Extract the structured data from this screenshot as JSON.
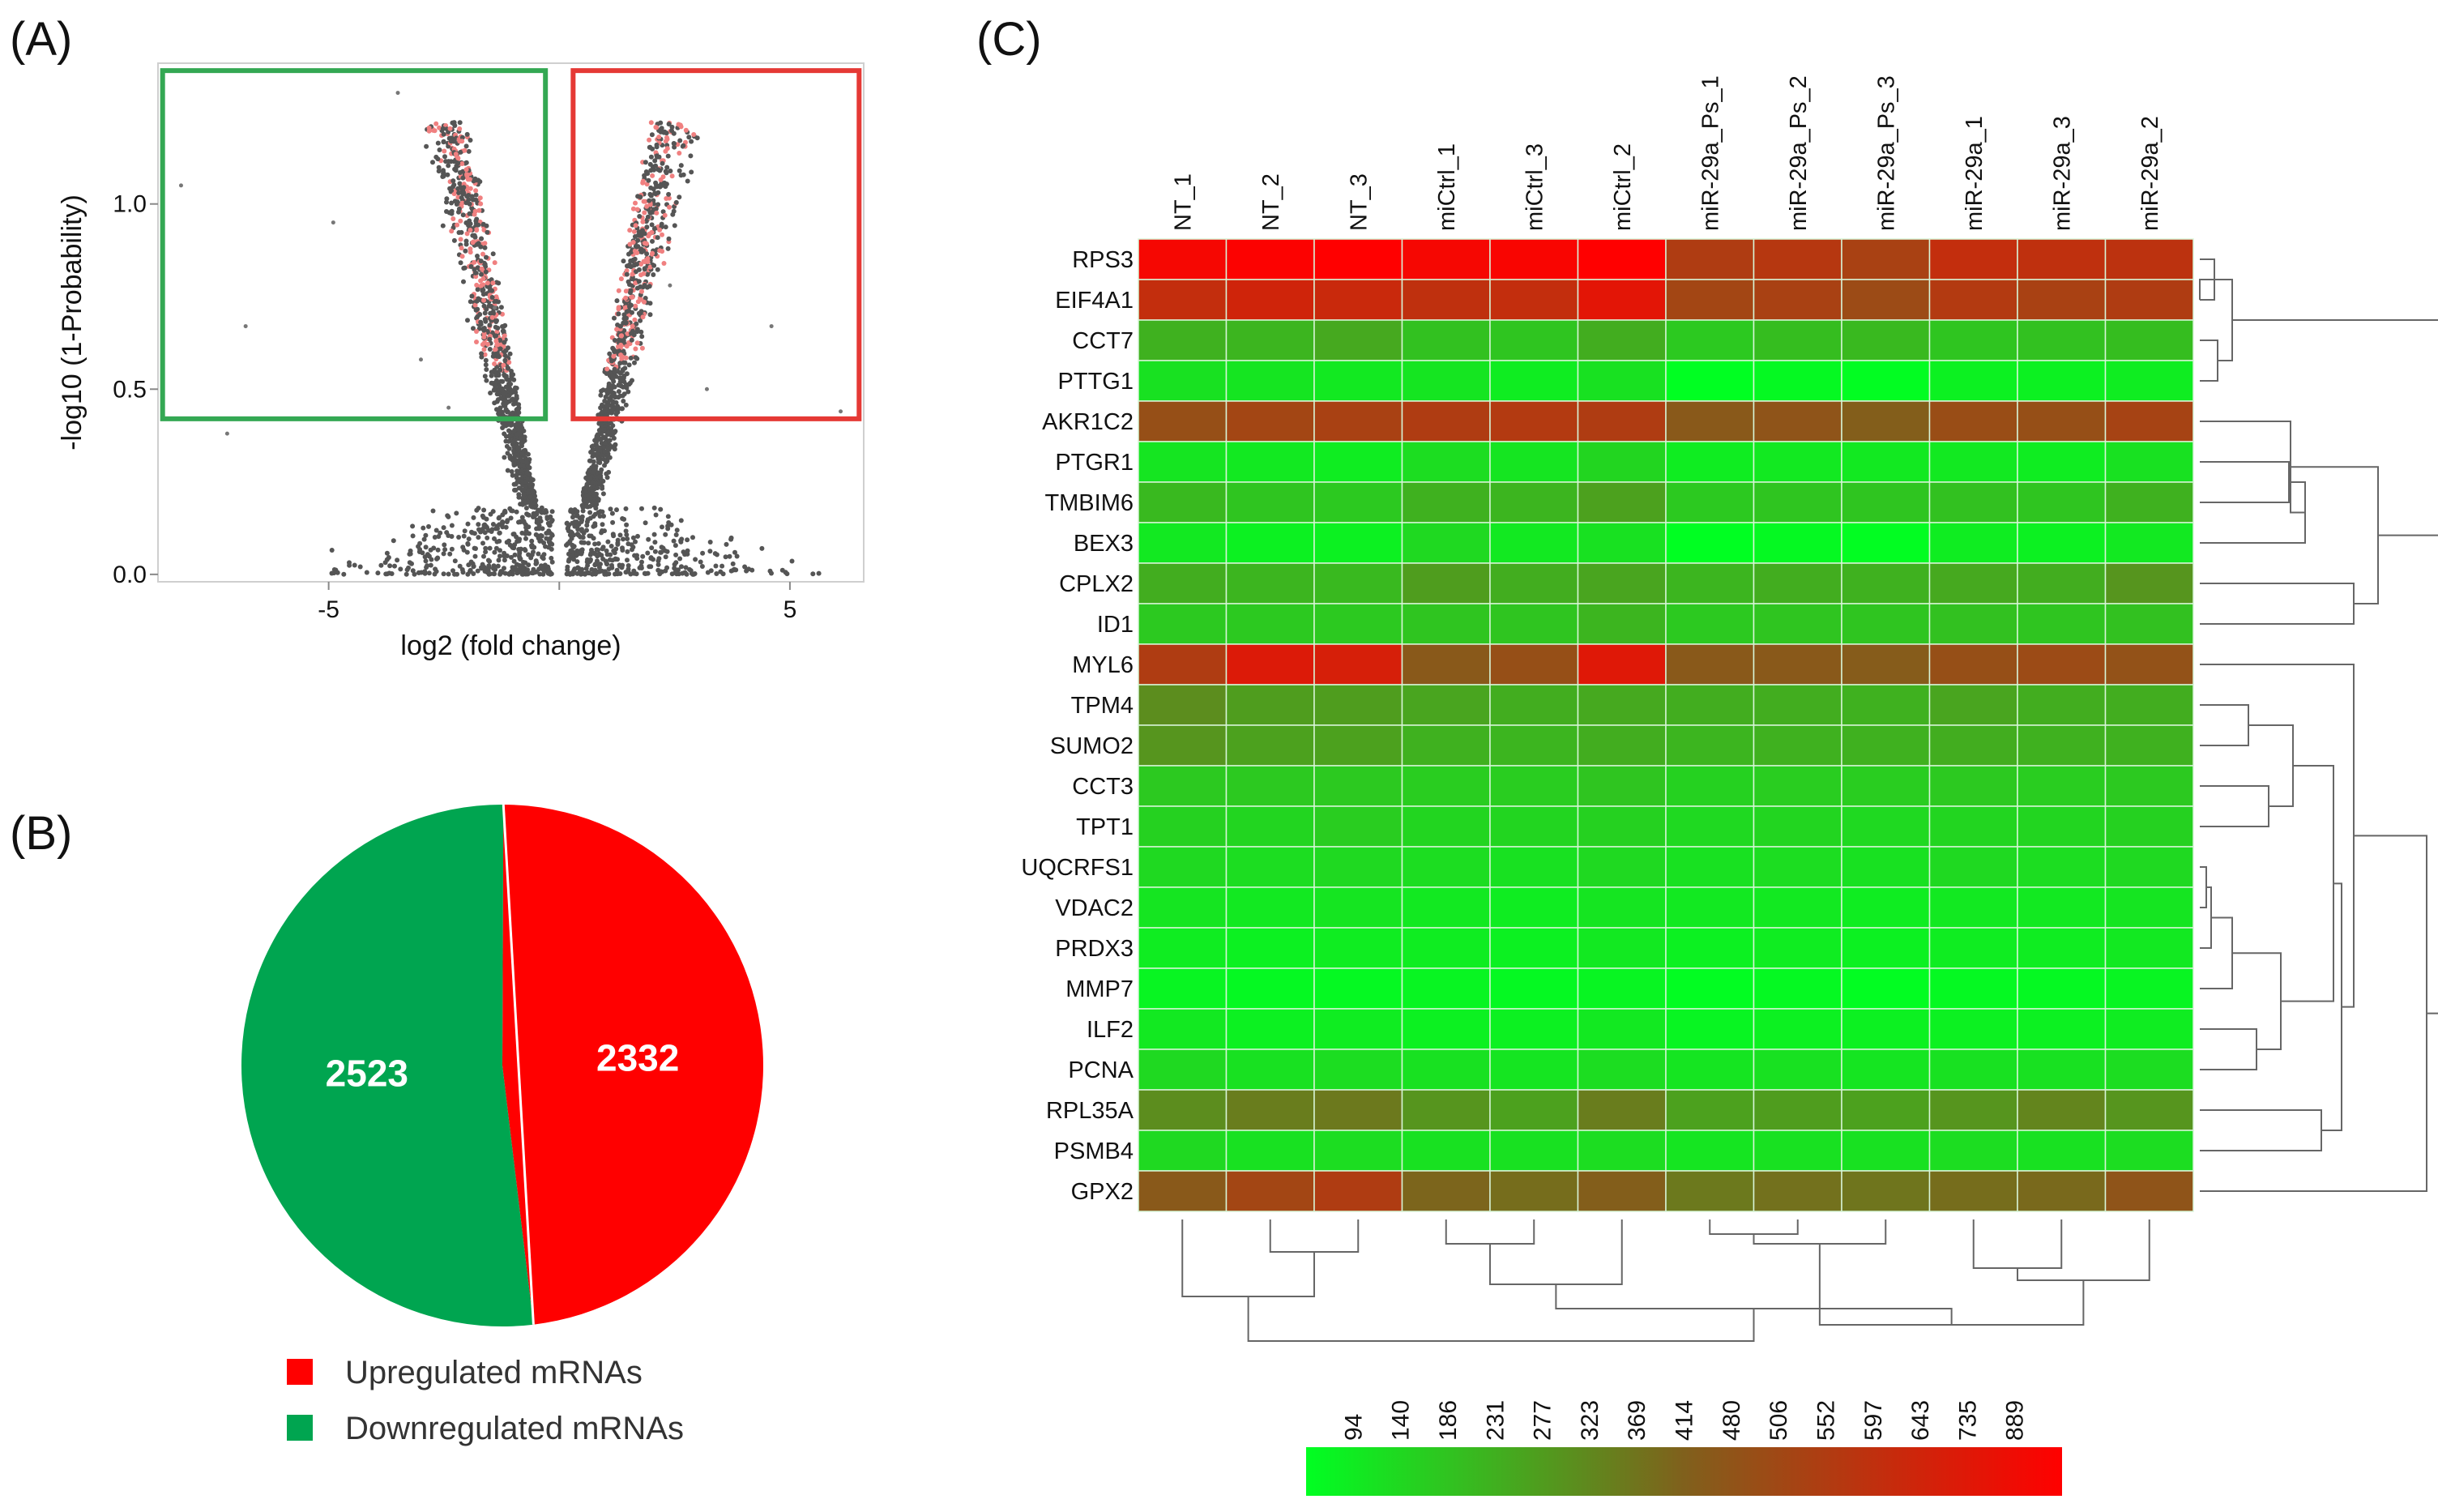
{
  "panels": {
    "a_label": "(A)",
    "b_label": "(B)",
    "c_label": "(C)"
  },
  "colors": {
    "up": "#ff0000",
    "down": "#00a550",
    "box_down": "#34a853",
    "box_up": "#e53935",
    "points": "#555555",
    "sig_points": "#f08080",
    "low": "#00ff22",
    "mid": "#80601c",
    "high": "#ff0000",
    "dendro": "#666666"
  },
  "chart_data": [
    {
      "type": "scatter",
      "name": "volcano",
      "xlabel": "log2 (fold change)",
      "ylabel": "-log10 (1-Probability)",
      "xlim": [
        -8.7,
        6.6
      ],
      "ylim": [
        -0.02,
        1.38
      ],
      "xticks": [
        -5,
        0,
        5
      ],
      "xtick_labels": [
        "-5",
        "",
        "5"
      ],
      "yticks": [
        0.0,
        0.5,
        1.0
      ],
      "ytick_labels": [
        "0.0",
        "0.5",
        "1.0"
      ],
      "down_box": {
        "x": [
          -8.6,
          -0.3
        ],
        "y": [
          0.42,
          1.36
        ]
      },
      "up_box": {
        "x": [
          0.3,
          6.5
        ],
        "y": [
          0.42,
          1.36
        ]
      },
      "outliers": [
        [
          -8.2,
          1.05
        ],
        [
          -6.8,
          0.67
        ],
        [
          -3.0,
          0.58
        ],
        [
          -2.4,
          0.45
        ],
        [
          -4.9,
          0.95
        ],
        [
          -1.4,
          0.72
        ],
        [
          4.6,
          0.67
        ],
        [
          6.1,
          0.44
        ],
        [
          3.2,
          0.5
        ],
        [
          2.4,
          0.78
        ],
        [
          -7.2,
          0.38
        ],
        [
          -3.5,
          1.3
        ]
      ]
    },
    {
      "type": "pie",
      "name": "regulation",
      "labels": [
        "Upregulated mRNAs",
        "Downregulated mRNAs"
      ],
      "values": [
        2332,
        2523
      ],
      "value_labels": [
        "2332",
        "2523"
      ]
    },
    {
      "type": "heatmap",
      "name": "expression",
      "columns": [
        "NT_1",
        "NT_2",
        "NT_3",
        "miCtrl_1",
        "miCtrl_3",
        "miCtrl_2",
        "miR-29a_Ps_1",
        "miR-29a_Ps_2",
        "miR-29a_Ps_3",
        "miR-29a_1",
        "miR-29a_3",
        "miR-29a_2"
      ],
      "rows": [
        "RPS3",
        "EIF4A1",
        "CCT7",
        "PTTG1",
        "AKR1C2",
        "PTGR1",
        "TMBIM6",
        "BEX3",
        "CPLX2",
        "ID1",
        "MYL6",
        "TPM4",
        "SUMO2",
        "CCT3",
        "TPT1",
        "UQCRFS1",
        "VDAC2",
        "PRDX3",
        "MMP7",
        "ILF2",
        "PCNA",
        "RPL35A",
        "PSMB4",
        "GPX2"
      ],
      "values": [
        [
          860,
          880,
          889,
          860,
          870,
          889,
          640,
          660,
          620,
          700,
          690,
          680
        ],
        [
          700,
          740,
          720,
          690,
          700,
          800,
          600,
          620,
          580,
          650,
          620,
          640
        ],
        [
          290,
          280,
          310,
          250,
          240,
          300,
          230,
          260,
          270,
          240,
          250,
          260
        ],
        [
          170,
          160,
          150,
          160,
          140,
          170,
          94,
          110,
          100,
          130,
          130,
          140
        ],
        [
          560,
          600,
          620,
          640,
          650,
          640,
          520,
          540,
          500,
          570,
          560,
          610
        ],
        [
          160,
          150,
          140,
          180,
          160,
          200,
          140,
          150,
          150,
          150,
          140,
          170
        ],
        [
          270,
          240,
          230,
          290,
          280,
          330,
          230,
          240,
          240,
          250,
          240,
          290
        ],
        [
          150,
          130,
          130,
          190,
          150,
          170,
          94,
          110,
          100,
          140,
          130,
          150
        ],
        [
          300,
          280,
          270,
          340,
          300,
          320,
          280,
          300,
          290,
          310,
          300,
          360
        ],
        [
          230,
          230,
          230,
          240,
          240,
          280,
          230,
          240,
          240,
          250,
          240,
          250
        ],
        [
          640,
          780,
          760,
          520,
          560,
          790,
          520,
          520,
          510,
          560,
          580,
          550
        ],
        [
          380,
          340,
          340,
          320,
          300,
          310,
          300,
          300,
          290,
          320,
          300,
          300
        ],
        [
          360,
          330,
          330,
          290,
          280,
          300,
          280,
          290,
          290,
          300,
          290,
          290
        ],
        [
          230,
          230,
          230,
          220,
          220,
          240,
          210,
          220,
          220,
          230,
          220,
          230
        ],
        [
          210,
          200,
          220,
          200,
          200,
          210,
          190,
          200,
          190,
          200,
          200,
          210
        ],
        [
          190,
          180,
          190,
          180,
          170,
          190,
          170,
          180,
          170,
          190,
          180,
          190
        ],
        [
          160,
          150,
          160,
          150,
          140,
          160,
          150,
          150,
          140,
          150,
          150,
          160
        ],
        [
          140,
          130,
          140,
          140,
          130,
          150,
          130,
          140,
          130,
          140,
          140,
          150
        ],
        [
          120,
          110,
          110,
          120,
          110,
          120,
          100,
          110,
          100,
          110,
          110,
          120
        ],
        [
          150,
          130,
          140,
          130,
          130,
          150,
          120,
          130,
          130,
          130,
          130,
          140
        ],
        [
          190,
          170,
          180,
          170,
          160,
          180,
          160,
          170,
          160,
          170,
          170,
          180
        ],
        [
          380,
          420,
          430,
          360,
          330,
          420,
          330,
          340,
          330,
          360,
          400,
          360
        ],
        [
          190,
          170,
          180,
          170,
          170,
          180,
          160,
          170,
          170,
          180,
          170,
          180
        ],
        [
          520,
          600,
          640,
          480,
          460,
          500,
          430,
          450,
          440,
          460,
          470,
          540
        ]
      ],
      "color_scale": {
        "ticks": [
          "94",
          "140",
          "186",
          "231",
          "277",
          "323",
          "369",
          "414",
          "480",
          "506",
          "552",
          "597",
          "643",
          "735",
          "889"
        ],
        "min": 94,
        "max": 889
      }
    }
  ]
}
